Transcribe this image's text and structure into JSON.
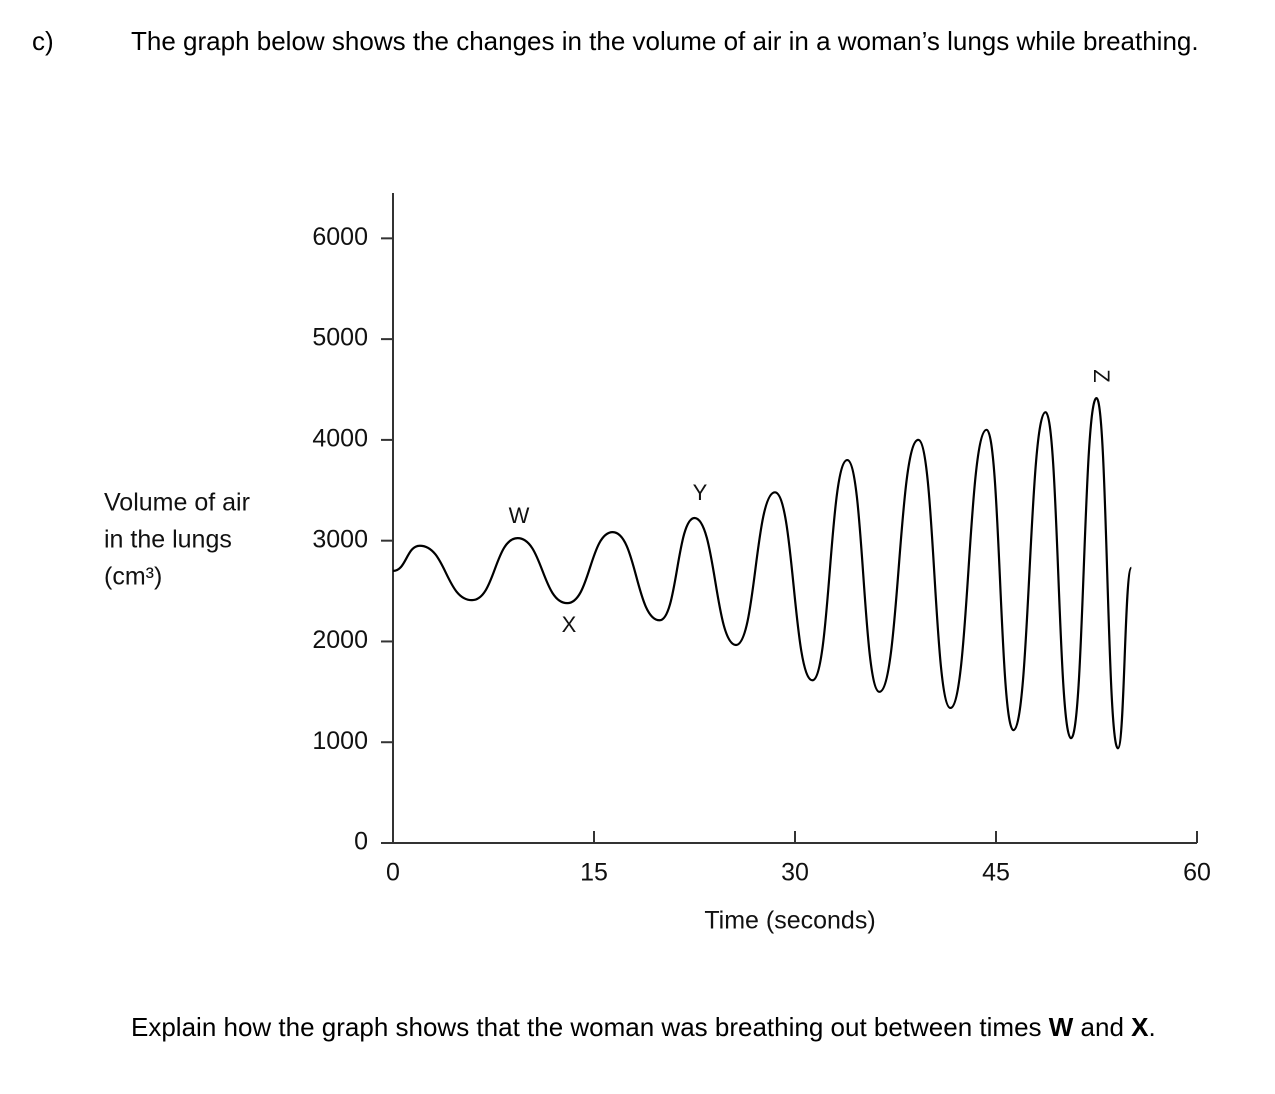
{
  "question_label": "c)",
  "intro": "The graph below shows the changes in the volume of air in a woman’s lungs while breathing.",
  "chart_data": {
    "type": "line",
    "y_label": [
      "Volume of air",
      "in the lungs",
      "(cm³)"
    ],
    "x_label": "Time (seconds)",
    "annotations": [
      "W",
      "X",
      "Y",
      "Z"
    ],
    "x": [
      0,
      2.0,
      5.9,
      9.3,
      13.0,
      16.4,
      19.9,
      22.5,
      25.6,
      28.5,
      31.3,
      33.9,
      36.3,
      39.2,
      41.6,
      44.3,
      46.3,
      48.7,
      50.6,
      52.5,
      54.1,
      55.1
    ],
    "values": [
      2700,
      2950,
      2410,
      3025,
      2380,
      3085,
      2210,
      3225,
      1965,
      3480,
      1615,
      3800,
      1500,
      4000,
      1340,
      4100,
      1120,
      4275,
      1040,
      4415,
      940,
      2730
    ],
    "color": "#000000",
    "xlim": [
      0,
      60
    ],
    "ylim": [
      0,
      6450
    ],
    "xticks": [
      0,
      15,
      30,
      45,
      60
    ],
    "yticks": [
      0,
      1000,
      2000,
      3000,
      4000,
      5000,
      6000
    ]
  },
  "question": [
    "Explain how the graph shows that the woman was breathing out between times ",
    "W",
    " and ",
    "X",
    "."
  ]
}
